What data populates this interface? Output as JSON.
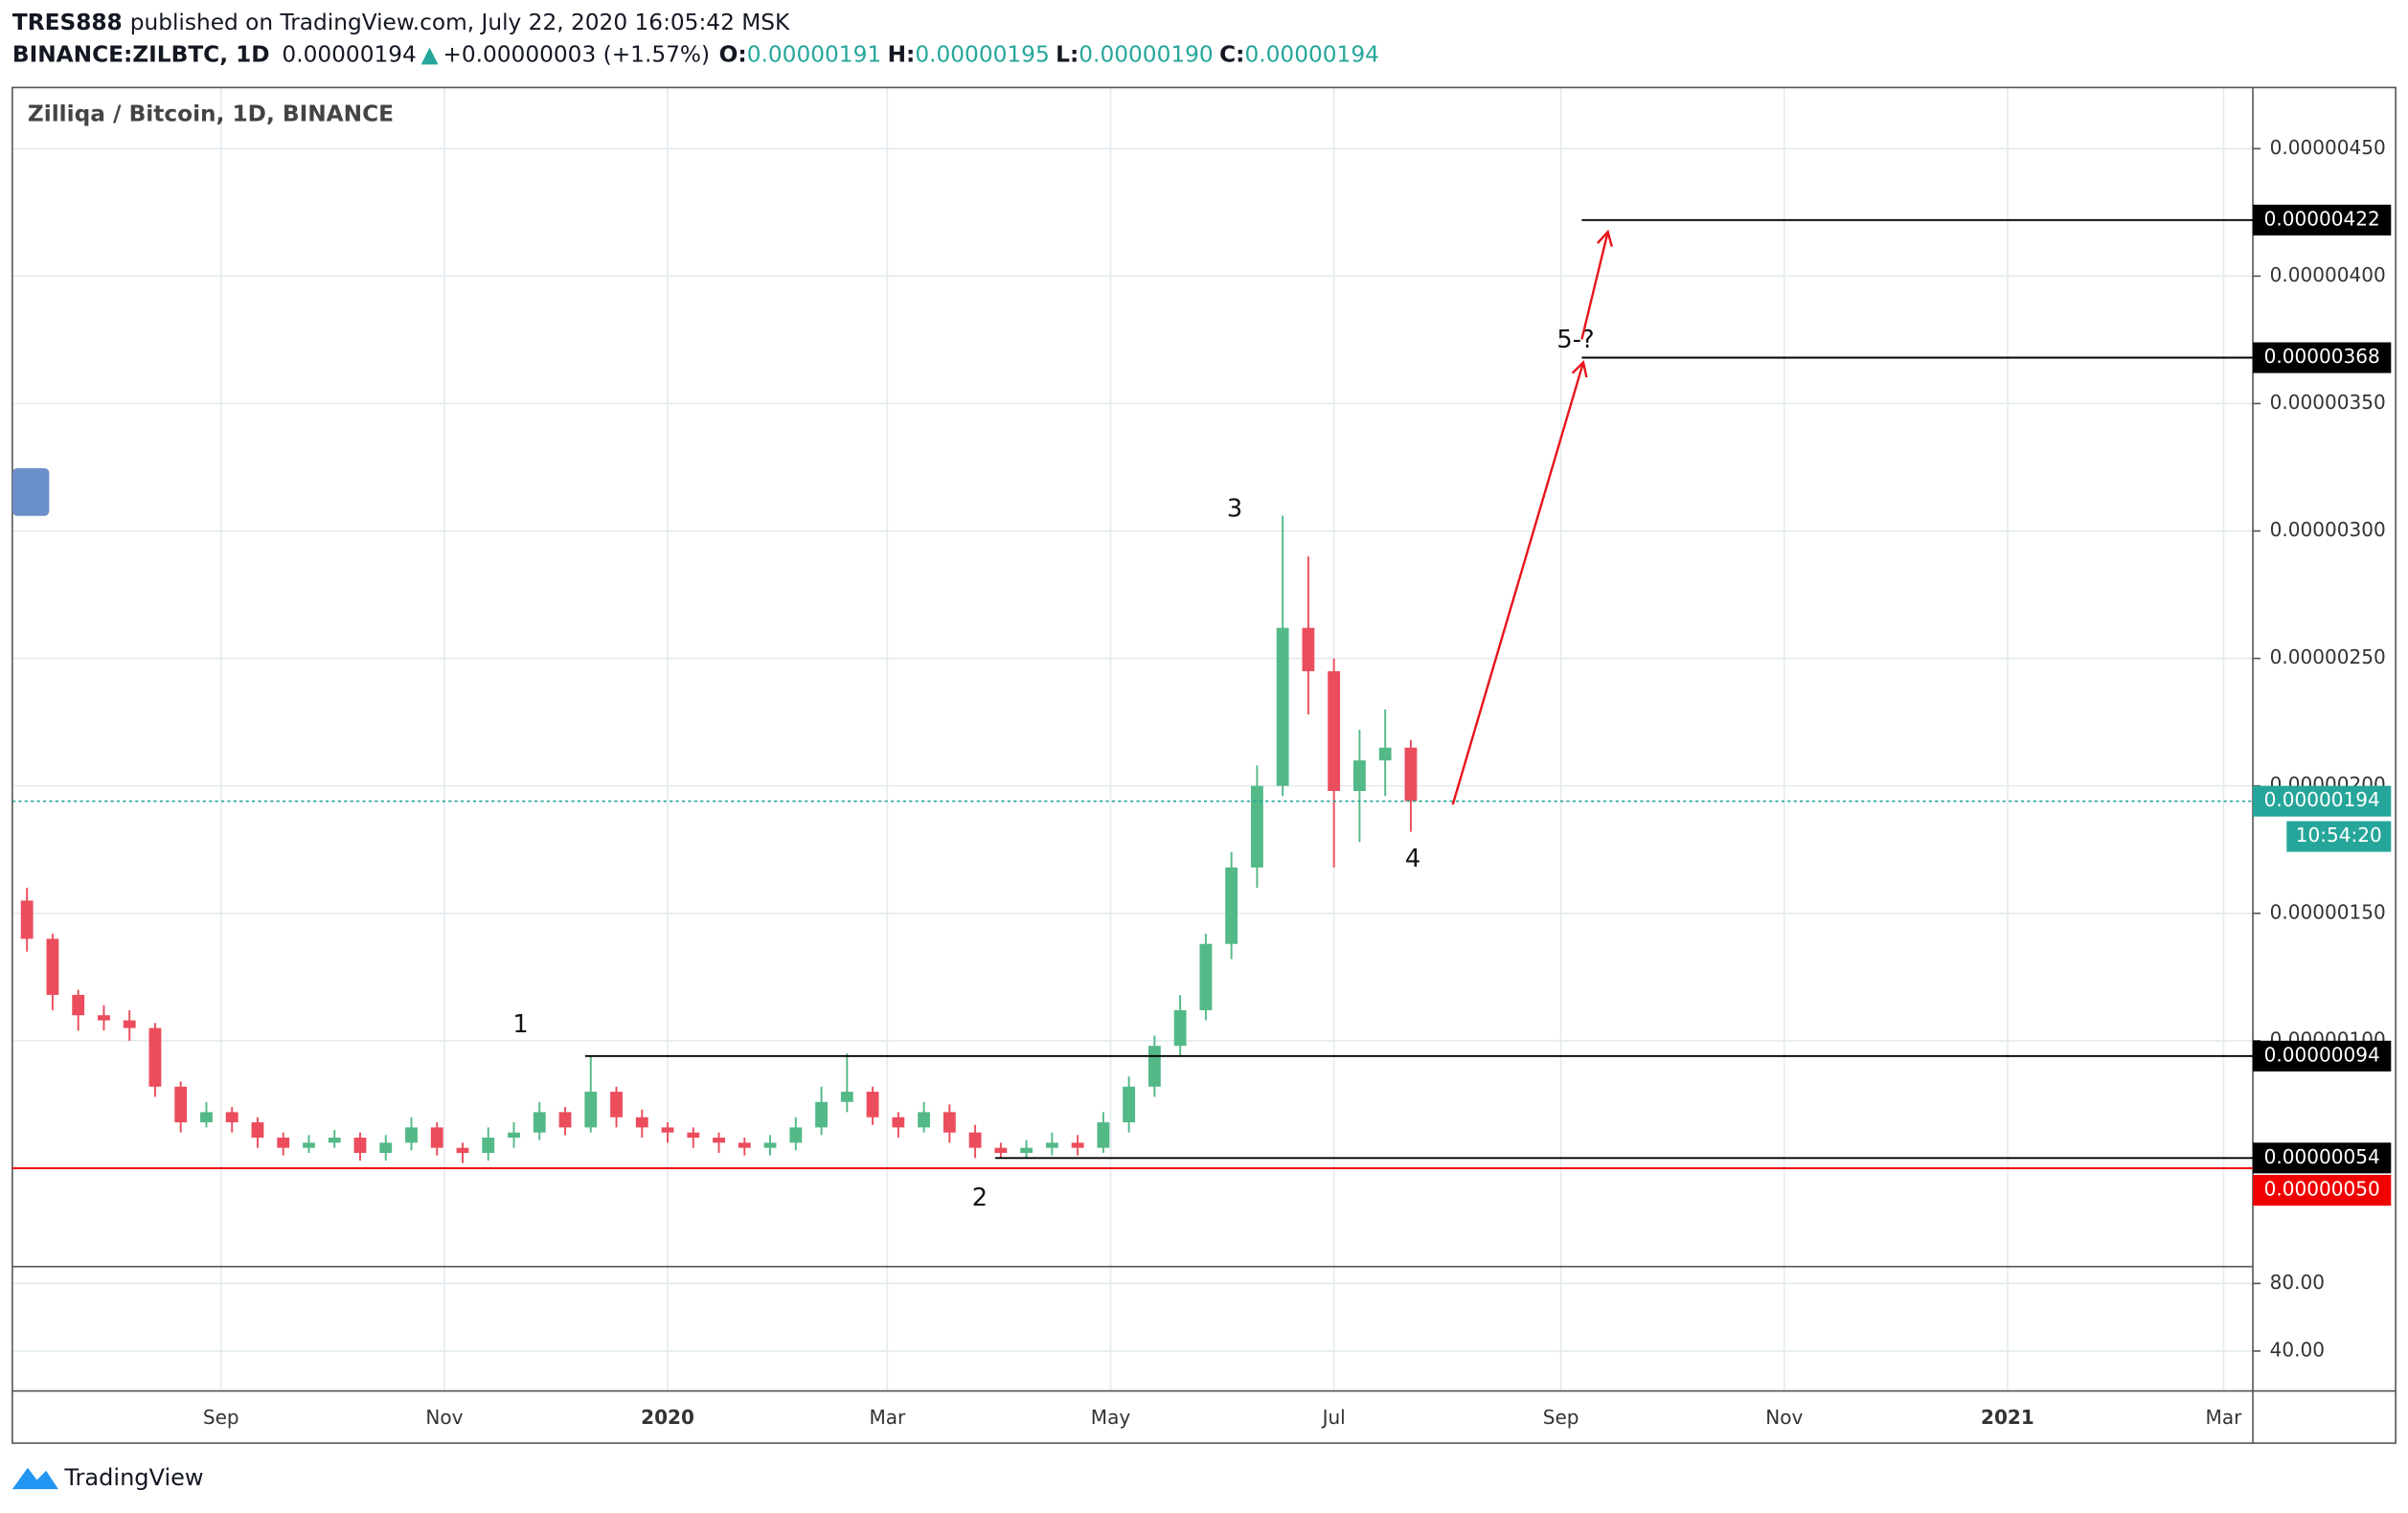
{
  "header": {
    "author": "TRES888",
    "published": "published on TradingView.com, July 22, 2020 16:05:42 MSK",
    "symbol": "BINANCE:ZILBTC, 1D",
    "price": "0.00000194",
    "arrow": "▲",
    "change": "+0.00000003 (+1.57%)",
    "ohlc": [
      {
        "label": "O:",
        "value": "0.00000191"
      },
      {
        "label": "H:",
        "value": "0.00000195"
      },
      {
        "label": "L:",
        "value": "0.00000190"
      },
      {
        "label": "C:",
        "value": "0.00000194"
      }
    ]
  },
  "chart_data": {
    "type": "candlestick",
    "title": "Zilliqa / Bitcoin, 1D, BINANCE",
    "up_color": "#53b987",
    "down_color": "#eb4d5c",
    "grid": true,
    "xlim": [
      -179,
      433
    ],
    "xticks": [
      {
        "value": -122,
        "label": "Sep"
      },
      {
        "value": -61,
        "label": "Nov"
      },
      {
        "value": 0,
        "label": "2020"
      },
      {
        "value": 60,
        "label": "Mar"
      },
      {
        "value": 121,
        "label": "May"
      },
      {
        "value": 182,
        "label": "Jul"
      },
      {
        "value": 244,
        "label": "Sep"
      },
      {
        "value": 305,
        "label": "Nov"
      },
      {
        "value": 366,
        "label": "2021"
      },
      {
        "value": 425,
        "label": "Mar"
      }
    ],
    "ylim": [
      1.14e-07,
      4.74e-06
    ],
    "yticks": [
      {
        "value": 1e-06,
        "label": "0.00000100"
      },
      {
        "value": 1.5e-06,
        "label": "0.00000150"
      },
      {
        "value": 2e-06,
        "label": "0.00000200"
      },
      {
        "value": 2.5e-06,
        "label": "0.00000250"
      },
      {
        "value": 3e-06,
        "label": "0.00000300"
      },
      {
        "value": 3.5e-06,
        "label": "0.00000350"
      },
      {
        "value": 4e-06,
        "label": "0.00000400"
      },
      {
        "value": 4.5e-06,
        "label": "0.00000450"
      }
    ],
    "x": [
      -175,
      -168,
      -161,
      -154,
      -147,
      -140,
      -133,
      -126,
      -119,
      -112,
      -105,
      -98,
      -91,
      -84,
      -77,
      -70,
      -63,
      -56,
      -49,
      -42,
      -35,
      -28,
      -21,
      -14,
      -7,
      0,
      7,
      14,
      21,
      28,
      35,
      42,
      49,
      56,
      63,
      70,
      77,
      84,
      91,
      98,
      105,
      112,
      119,
      126,
      133,
      140,
      147,
      154,
      161,
      168,
      175,
      182,
      189,
      196,
      203
    ],
    "open": [
      1.55e-06,
      1.4e-06,
      1.18e-06,
      1.1e-06,
      1.08e-06,
      1.05e-06,
      8.2e-07,
      6.8e-07,
      7.2e-07,
      6.8e-07,
      6.2e-07,
      5.8e-07,
      6e-07,
      6.2e-07,
      5.6e-07,
      6e-07,
      6.6e-07,
      5.8e-07,
      5.6e-07,
      6.2e-07,
      6.4e-07,
      7.2e-07,
      6.6e-07,
      8e-07,
      7e-07,
      6.6e-07,
      6.4e-07,
      6.2e-07,
      6e-07,
      5.8e-07,
      6e-07,
      6.6e-07,
      7.6e-07,
      8e-07,
      7e-07,
      6.6e-07,
      7.2e-07,
      6.4e-07,
      5.8e-07,
      5.6e-07,
      5.8e-07,
      6e-07,
      5.8e-07,
      6.8e-07,
      8.2e-07,
      9.8e-07,
      1.12e-06,
      1.38e-06,
      1.68e-06,
      2e-06,
      2.62e-06,
      2.45e-06,
      1.98e-06,
      2.1e-06,
      2.15e-06
    ],
    "high": [
      1.6e-06,
      1.42e-06,
      1.2e-06,
      1.14e-06,
      1.12e-06,
      1.07e-06,
      8.4e-07,
      7.6e-07,
      7.4e-07,
      7e-07,
      6.4e-07,
      6.3e-07,
      6.5e-07,
      6.4e-07,
      6.3e-07,
      7e-07,
      6.8e-07,
      6e-07,
      6.6e-07,
      6.8e-07,
      7.6e-07,
      7.4e-07,
      9.4e-07,
      8.2e-07,
      7.3e-07,
      6.8e-07,
      6.6e-07,
      6.4e-07,
      6.2e-07,
      6.3e-07,
      7e-07,
      8.2e-07,
      9.5e-07,
      8.2e-07,
      7.2e-07,
      7.6e-07,
      7.5e-07,
      6.7e-07,
      6e-07,
      6.1e-07,
      6.4e-07,
      6.3e-07,
      7.2e-07,
      8.6e-07,
      1.02e-06,
      1.18e-06,
      1.42e-06,
      1.74e-06,
      2.08e-06,
      3.06e-06,
      2.9e-06,
      2.5e-06,
      2.22e-06,
      2.3e-06,
      2.18e-06
    ],
    "low": [
      1.35e-06,
      1.12e-06,
      1.04e-06,
      1.04e-06,
      1e-06,
      7.8e-07,
      6.4e-07,
      6.6e-07,
      6.4e-07,
      5.8e-07,
      5.5e-07,
      5.6e-07,
      5.8e-07,
      5.3e-07,
      5.3e-07,
      5.7e-07,
      5.5e-07,
      5.2e-07,
      5.3e-07,
      5.8e-07,
      6.1e-07,
      6.3e-07,
      6.4e-07,
      6.6e-07,
      6.2e-07,
      6e-07,
      5.8e-07,
      5.6e-07,
      5.5e-07,
      5.5e-07,
      5.7e-07,
      6.3e-07,
      7.2e-07,
      6.7e-07,
      6.2e-07,
      6.4e-07,
      6e-07,
      5.4e-07,
      5.4e-07,
      5.4e-07,
      5.5e-07,
      5.5e-07,
      5.6e-07,
      6.4e-07,
      7.8e-07,
      9.4e-07,
      1.08e-06,
      1.32e-06,
      1.6e-06,
      1.96e-06,
      2.28e-06,
      1.68e-06,
      1.78e-06,
      1.96e-06,
      1.82e-06
    ],
    "close": [
      1.4e-06,
      1.18e-06,
      1.1e-06,
      1.08e-06,
      1.05e-06,
      8.2e-07,
      6.8e-07,
      7.2e-07,
      6.8e-07,
      6.2e-07,
      5.8e-07,
      6e-07,
      6.2e-07,
      5.6e-07,
      6e-07,
      6.6e-07,
      5.8e-07,
      5.6e-07,
      6.2e-07,
      6.4e-07,
      7.2e-07,
      6.6e-07,
      8e-07,
      7e-07,
      6.6e-07,
      6.4e-07,
      6.2e-07,
      6e-07,
      5.8e-07,
      6e-07,
      6.6e-07,
      7.6e-07,
      8e-07,
      7e-07,
      6.6e-07,
      7.2e-07,
      6.4e-07,
      5.8e-07,
      5.6e-07,
      5.8e-07,
      6e-07,
      5.8e-07,
      6.8e-07,
      8.2e-07,
      9.8e-07,
      1.12e-06,
      1.38e-06,
      1.68e-06,
      2e-06,
      2.62e-06,
      2.45e-06,
      1.98e-06,
      2.1e-06,
      2.15e-06,
      1.94e-06
    ],
    "levels": {
      "values": [
        4.22e-06,
        3.68e-06,
        9.4e-07,
        5.4e-07,
        5e-07
      ],
      "value_labels": [
        "0.00000422",
        "0.00000368",
        "0.00000094",
        "0.00000054",
        "0.00000050"
      ],
      "colors": [
        "#000000",
        "#000000",
        "#000000",
        "#000000",
        "#f00000"
      ]
    },
    "last_price": {
      "value": 1.94e-06,
      "label": "0.00000194",
      "countdown": "10:54:20",
      "color": "#26a69a"
    },
    "annotations": [
      "1",
      "2",
      "3",
      "4",
      "5-?"
    ],
    "sub_pane": {
      "ylim": [
        16.4,
        90
      ],
      "yticks": [
        {
          "value": 40,
          "label": "40.00"
        },
        {
          "value": 80,
          "label": "80.00"
        }
      ]
    }
  },
  "footer": {
    "brand": "TradingView"
  }
}
